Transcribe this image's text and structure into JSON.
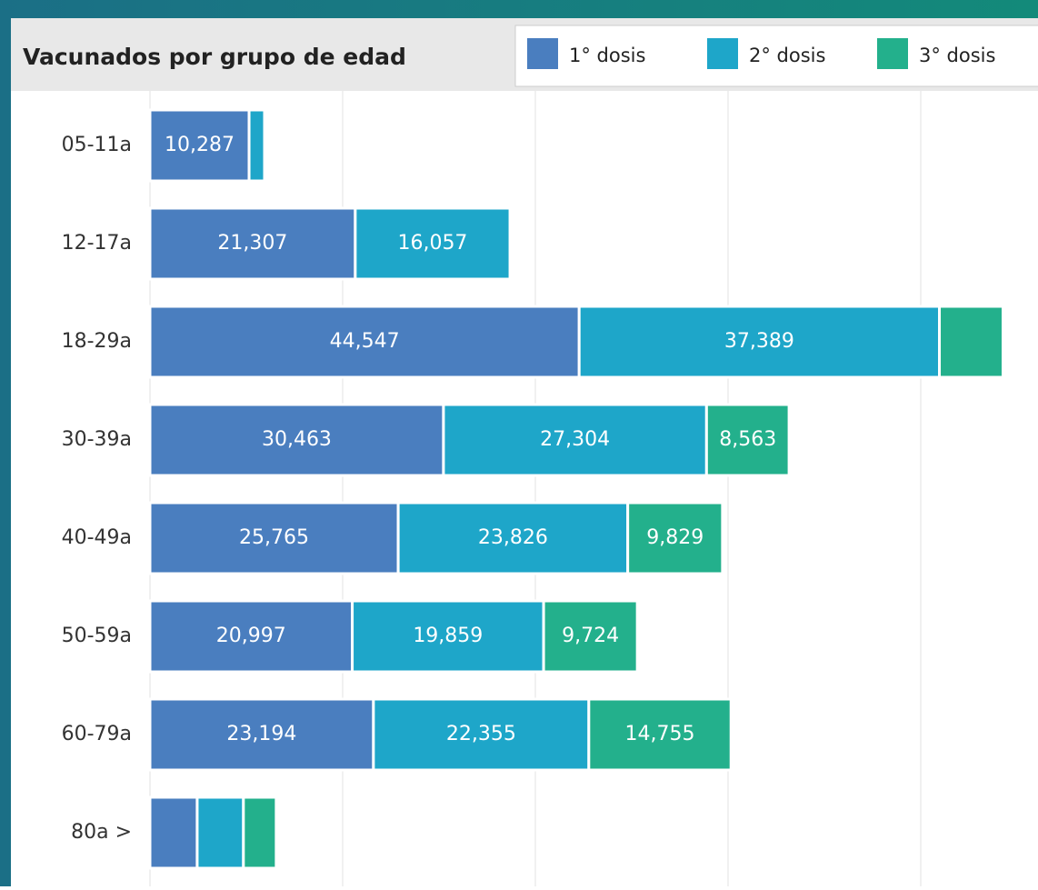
{
  "chart_data": {
    "type": "stacked-barh",
    "title": "Vacunados por grupo de edad",
    "categories": [
      "05-11a",
      "12-17a",
      "18-29a",
      "30-39a",
      "40-49a",
      "50-59a",
      "60-79a",
      "80a >"
    ],
    "series": [
      {
        "name": "1° dosis",
        "color": "#4a7ebf",
        "values": [
          10287,
          21307,
          44547,
          30463,
          25765,
          20997,
          23194,
          4900
        ],
        "value_labels": [
          "10,287",
          "21,307",
          "44,547",
          "30,463",
          "25,765",
          "20,997",
          "23,194",
          null
        ]
      },
      {
        "name": "2° dosis",
        "color": "#1ea6c9",
        "values": [
          1600,
          16057,
          37389,
          27304,
          23826,
          19859,
          22355,
          4800
        ],
        "value_labels": [
          null,
          "16,057",
          "37,389",
          "27,304",
          "23,826",
          "19,859",
          "22,355",
          null
        ]
      },
      {
        "name": "3° dosis",
        "color": "#23b08c",
        "values": [
          0,
          0,
          6600,
          8563,
          9829,
          9724,
          14755,
          3400
        ],
        "value_labels": [
          null,
          null,
          null,
          "8,563",
          "9,829",
          "9,724",
          "14,755",
          null
        ]
      }
    ],
    "xlim": [
      0,
      92170
    ],
    "xticks": [
      0,
      20000,
      40000,
      60000,
      80000
    ],
    "grid": true
  }
}
